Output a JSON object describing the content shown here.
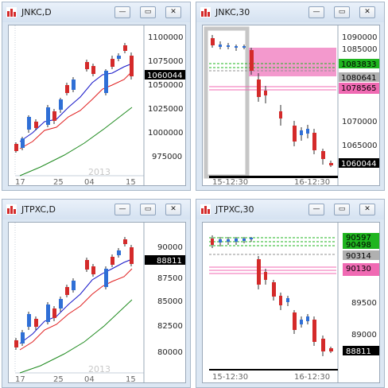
{
  "windows": [
    {
      "title": "JNKC,D",
      "price_labels": [
        "1100000",
        "1075000",
        "1050000",
        "1025000",
        "1000000",
        "975000"
      ],
      "last_price": "1060044",
      "x_labels": [
        "17",
        "25",
        "04",
        "15"
      ],
      "year_label": "2013"
    },
    {
      "title": "JNKC,30",
      "price_labels": [
        "1090000",
        "1085000",
        "1070000",
        "1065000"
      ],
      "level_labels": [
        "1083833",
        "1080641",
        "1078565"
      ],
      "last_price": "1060044",
      "x_labels": [
        "15-12:30",
        "16-12:30"
      ]
    },
    {
      "title": "JTPXC,D",
      "price_labels": [
        "90000",
        "87500",
        "85000",
        "82500",
        "80000"
      ],
      "last_price": "88811",
      "x_labels": [
        "17",
        "25",
        "04",
        "15"
      ],
      "year_label": "2013"
    },
    {
      "title": "JTPXC,30",
      "price_labels": [
        "89500",
        "89000"
      ],
      "level_labels": [
        "90597",
        "90498",
        "90314",
        "90130"
      ],
      "last_price": "88811",
      "x_labels": [
        "15-12:30",
        "16-12:30"
      ]
    }
  ],
  "buttons": {
    "minimize": "—",
    "restore": "▭",
    "close": "✕"
  },
  "colors": {
    "up_candle": "#2f6fd6",
    "down_candle": "#d42a2a",
    "ma_blue": "#1515c8",
    "ma_red": "#e01e1e",
    "ma_green": "#1e8a1e",
    "green_level": "#1fb51f",
    "pink_level": "#f06ab3",
    "grey_level": "#909090",
    "last_price_bg": "#000000"
  }
}
